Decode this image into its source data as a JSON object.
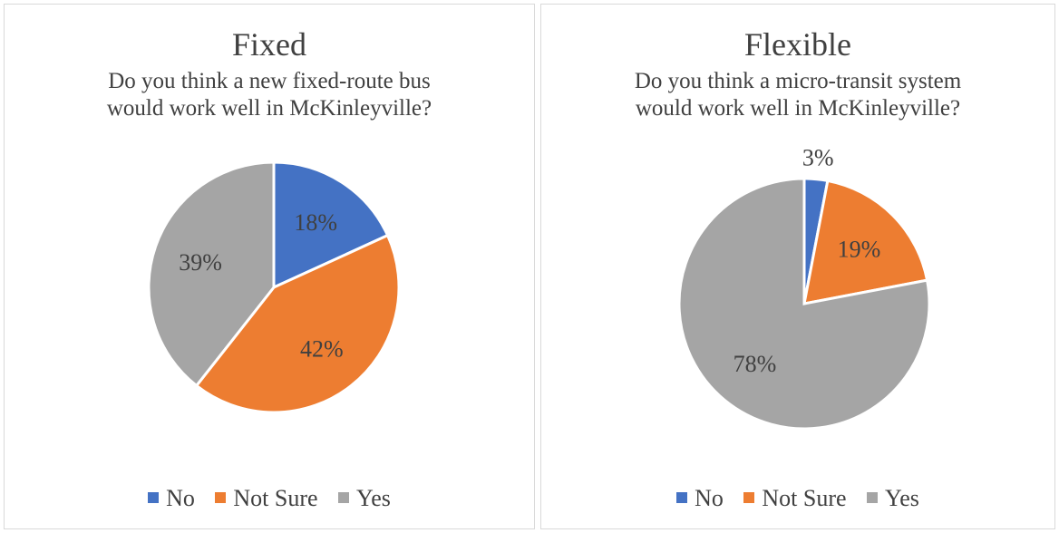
{
  "chart_data": [
    {
      "type": "pie",
      "title": "Fixed",
      "subtitle": [
        "Do you think a new fixed-route bus",
        "would work well in McKinleyville?"
      ],
      "categories": [
        "No",
        "Not Sure",
        "Yes"
      ],
      "values": [
        18,
        42,
        39
      ],
      "labels": [
        "18%",
        "42%",
        "39%"
      ],
      "legend": "bottom"
    },
    {
      "type": "pie",
      "title": "Flexible",
      "subtitle": [
        "Do you think a micro-transit system",
        "would work well in McKinleyville?"
      ],
      "categories": [
        "No",
        "Not Sure",
        "Yes"
      ],
      "values": [
        3,
        19,
        78
      ],
      "labels": [
        "3%",
        "19%",
        "78%"
      ],
      "legend": "bottom"
    }
  ],
  "colors": {
    "No": "#4472c4",
    "Not Sure": "#ed7d31",
    "Yes": "#a5a5a5"
  }
}
